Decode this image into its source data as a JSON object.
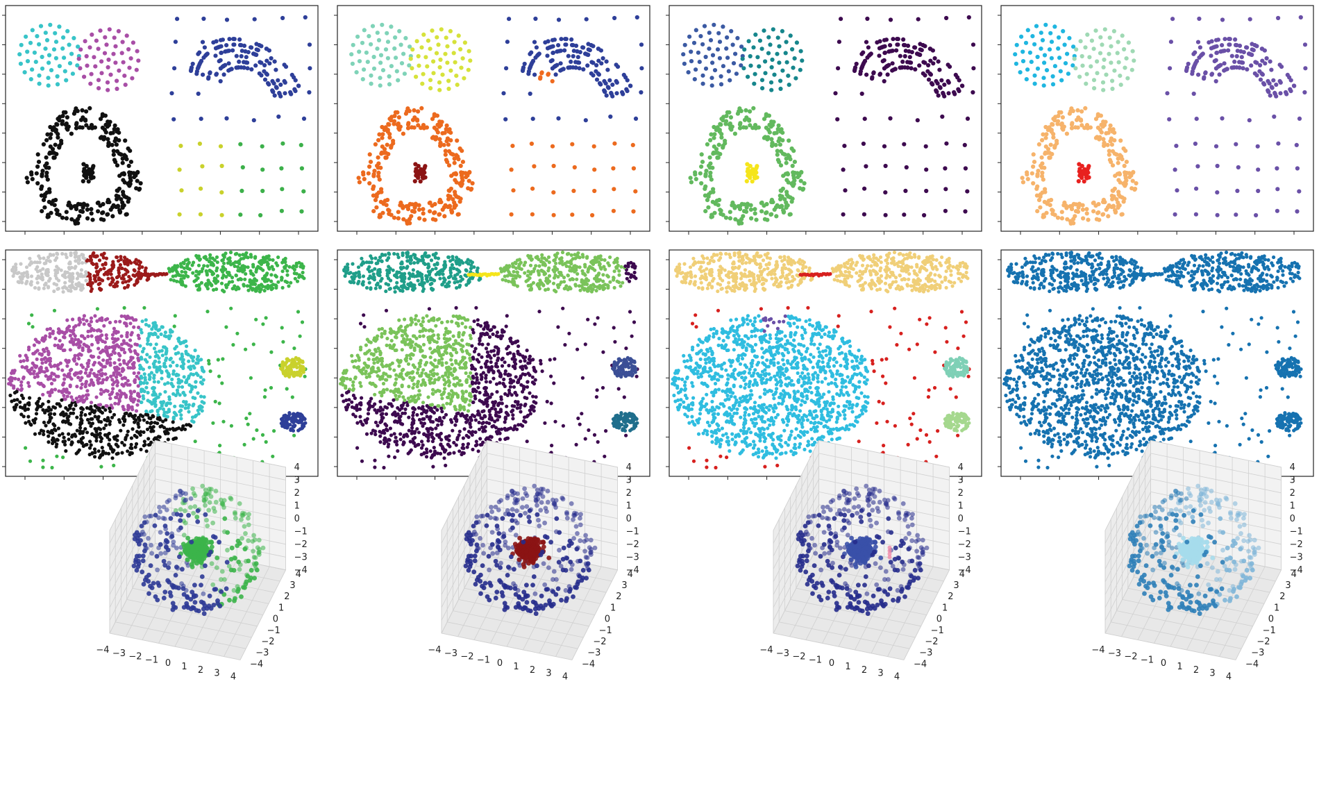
{
  "figure": {
    "layout": "3 rows x 4 columns of clustering scatter plots"
  },
  "chart_data": [
    {
      "type": "scatter",
      "row": 1,
      "description": "2D dataset: two small dense blobs, a curved band with sparse grid noise, a ring with central core, sparse grid noise",
      "panels": [
        {
          "id": "r1c1",
          "palette": {
            "blob_left": "#38c4c8",
            "blob_mid": "#a84ea6",
            "band": "#2e3f99",
            "noise_top": "#2e3f99",
            "ring": "#111111",
            "core": "#111111",
            "noise_bottom_a": "#c9d12c",
            "noise_bottom_b": "#3cb04a"
          }
        },
        {
          "id": "r1c2",
          "palette": {
            "blob_left": "#7fd3b8",
            "blob_mid": "#d6e23a",
            "band": "#2e3f99",
            "band_tip": "#ef6a1f",
            "noise_top": "#2e3f99",
            "ring": "#ec6a1e",
            "core": "#8b1414",
            "noise_bottom_a": "#ec6a1e",
            "noise_bottom_b": "#ec6a1e"
          }
        },
        {
          "id": "r1c3",
          "palette": {
            "blob_left": "#3b5aa3",
            "blob_mid": "#16868c",
            "band": "#3d0a4f",
            "noise_top": "#3d0a4f",
            "ring": "#62b95e",
            "core": "#f5e51b",
            "noise_bottom_a": "#3d0a4f",
            "noise_bottom_b": "#3d0a4f"
          }
        },
        {
          "id": "r1c4",
          "palette": {
            "blob_left": "#1fb6e0",
            "blob_mid": "#9fd9b4",
            "band": "#6a50a7",
            "noise_top": "#6a50a7",
            "ring": "#f6b36b",
            "core": "#e8211f",
            "noise_bottom_a": "#6a50a7",
            "noise_bottom_b": "#6a50a7"
          }
        }
      ]
    },
    {
      "type": "scatter",
      "row": 2,
      "description": "2D dataset: two elongated ellipses joined by a bridge, large dense ellipse, sparse noise, two compact discs",
      "panels": [
        {
          "id": "r2c1",
          "palette": {
            "ellipse_left": "#c8c8c8",
            "ellipse_mid": "#9b1a1a",
            "bridge": "#9b1a1a",
            "ellipse_right": "#3cb54a",
            "big_left": "#a84ea6",
            "big_right": "#38c4c8",
            "big_bottom": "#111111",
            "noise": "#3cb54a",
            "disc_top": "#c9d12c",
            "disc_bottom": "#2e3f99"
          }
        },
        {
          "id": "r2c2",
          "palette": {
            "ellipse_left": "#1f9e89",
            "ellipse_mid": "#1f9e89",
            "bridge": "#f5e51b",
            "ellipse_right": "#7ac35a",
            "ellipse_tip": "#3d0a4f",
            "big_left": "#7ac35a",
            "big_right": "#3d0a4f",
            "big_bottom": "#3d0a4f",
            "noise": "#3d0a4f",
            "disc_top": "#3b4f96",
            "disc_bottom": "#1f6e8c"
          }
        },
        {
          "id": "r2c3",
          "palette": {
            "ellipse_left": "#f0cf78",
            "ellipse_mid": "#f0cf78",
            "bridge": "#d7201e",
            "ellipse_right": "#f0cf78",
            "big_left": "#2fbde0",
            "big_right": "#2fbde0",
            "big_bottom": "#2fbde0",
            "big_cap": "#6a50a7",
            "noise": "#d7201e",
            "disc_top": "#7fd0b6",
            "disc_bottom": "#a5d88e"
          }
        },
        {
          "id": "r2c4",
          "palette": {
            "ellipse_left": "#1672b0",
            "ellipse_mid": "#1672b0",
            "bridge": "#1672b0",
            "ellipse_right": "#1672b0",
            "big_left": "#1672b0",
            "big_right": "#1672b0",
            "big_bottom": "#1672b0",
            "noise": "#1672b0",
            "disc_top": "#1672b0",
            "disc_bottom": "#1672b0"
          }
        }
      ]
    },
    {
      "type": "scatter",
      "row": 3,
      "description": "3D dataset: dense central core inside a spherical shell",
      "xlim": [
        -4,
        4
      ],
      "ylim": [
        -4,
        4
      ],
      "zlim": [
        -4,
        4
      ],
      "x_ticks": [
        -4,
        -3,
        -2,
        -1,
        0,
        1,
        2,
        3,
        4
      ],
      "y_ticks": [
        4,
        3,
        2,
        1,
        0,
        -1,
        -2,
        -3,
        -4
      ],
      "z_ticks": [
        4,
        3,
        2,
        1,
        0,
        -1,
        -2,
        -3,
        -4
      ],
      "panels": [
        {
          "id": "r3c1",
          "palette": {
            "core": "#3cb44a",
            "shell_a": "#2e3a96",
            "shell_b": "#3cb44a"
          }
        },
        {
          "id": "r3c2",
          "palette": {
            "core": "#8b1414",
            "shell_a": "#262c8c",
            "shell_b": "#262c8c"
          }
        },
        {
          "id": "r3c3",
          "palette": {
            "core": "#3a50a8",
            "shell_a": "#262c8c",
            "shell_b": "#262c8c",
            "outlier": "#f08aa8"
          }
        },
        {
          "id": "r3c4",
          "palette": {
            "core": "#a6dcec",
            "shell_a": "#2f7fb8",
            "shell_b": "#7fb6d8"
          }
        }
      ]
    }
  ]
}
